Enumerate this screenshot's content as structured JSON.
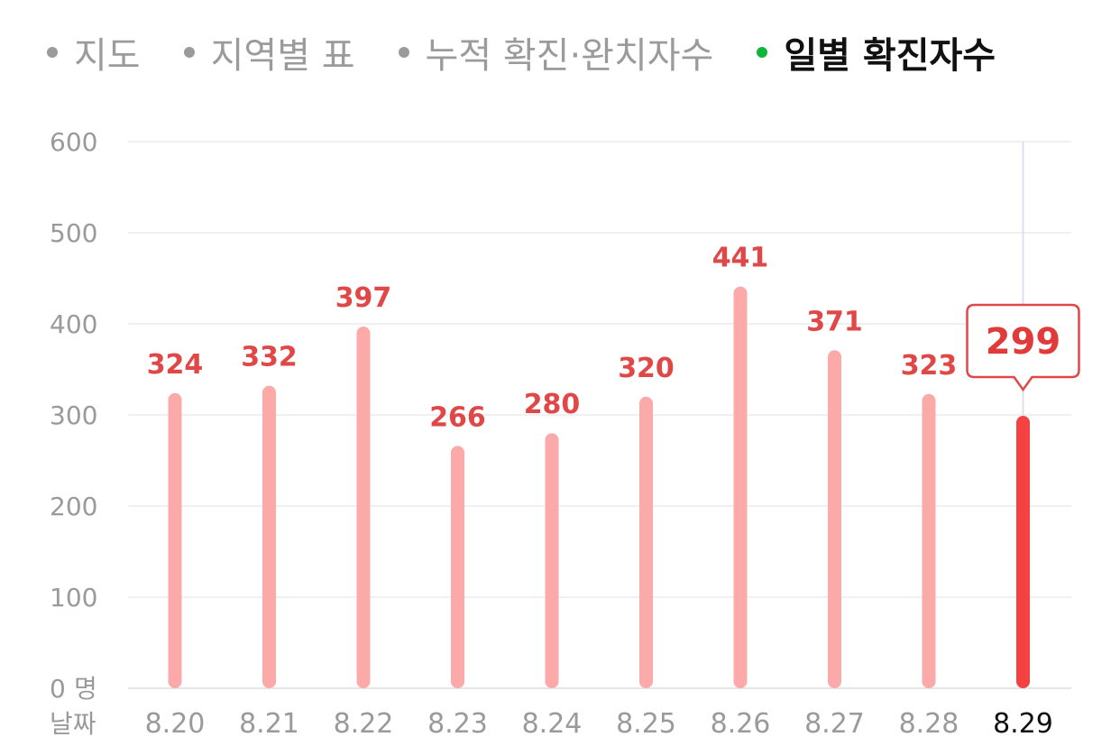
{
  "tabs": [
    {
      "label": "지도",
      "active": false
    },
    {
      "label": "지역별 표",
      "active": false
    },
    {
      "label": "누적 확진·완치자수",
      "active": false
    },
    {
      "label": "일별 확진자수",
      "active": true
    }
  ],
  "chart_data": {
    "type": "bar",
    "title": "",
    "ylabel": "명",
    "xlabel": "날짜",
    "ylim": [
      0,
      600
    ],
    "yticks": [
      0,
      100,
      200,
      300,
      400,
      500,
      600
    ],
    "ytick_labels": [
      "0",
      "100",
      "200",
      "300",
      "400",
      "500",
      "600"
    ],
    "categories": [
      "8.20",
      "8.21",
      "8.22",
      "8.23",
      "8.24",
      "8.25",
      "8.26",
      "8.27",
      "8.28",
      "8.29"
    ],
    "values": [
      324,
      332,
      397,
      266,
      280,
      320,
      441,
      371,
      323,
      299
    ],
    "selected_index": 9,
    "grid": true,
    "colors": {
      "bar": "#fca9a9",
      "selected_bar": "#f44141",
      "label": "#e04848",
      "callout_border": "#e04848"
    }
  }
}
